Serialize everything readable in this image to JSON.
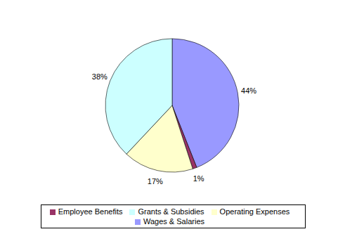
{
  "chart_data": {
    "type": "pie",
    "categories": [
      "Wages & Salaries",
      "Employee Benefits",
      "Operating Expenses",
      "Grants & Subsidies"
    ],
    "values": [
      44,
      1,
      17,
      38
    ],
    "value_labels": [
      "44%",
      "1%",
      "17%",
      "38%"
    ],
    "colors": [
      "#9999FF",
      "#993366",
      "#FFFFCC",
      "#CCFFFF"
    ],
    "data_labels": true,
    "legend": "bottom"
  }
}
